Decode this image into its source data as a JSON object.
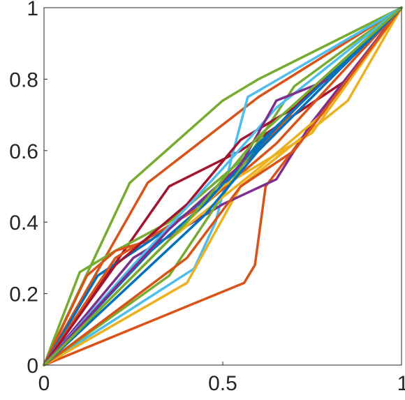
{
  "chart_data": {
    "type": "line",
    "title": "",
    "xlabel": "",
    "ylabel": "",
    "xlim": [
      0,
      1
    ],
    "ylim": [
      0,
      1
    ],
    "grid": false,
    "legend": "none",
    "x_ticks": [
      0,
      0.5,
      1
    ],
    "x_tick_labels": [
      "0",
      "0.5",
      "1"
    ],
    "y_ticks": [
      0,
      0.2,
      0.4,
      0.6,
      0.8,
      1
    ],
    "y_tick_labels": [
      "0",
      "0.2",
      "0.4",
      "0.6",
      "0.8",
      "1"
    ],
    "colors": [
      "#0072BD",
      "#D95319",
      "#EDB120",
      "#7E2F8E",
      "#77AC30",
      "#4DBEEE",
      "#A2142F"
    ],
    "series": [
      {
        "color": "#D95319",
        "x": [
          0,
          0.56,
          0.59,
          0.62,
          1
        ],
        "y": [
          0,
          0.23,
          0.28,
          0.5,
          1
        ]
      },
      {
        "color": "#77AC30",
        "x": [
          0,
          0.24,
          0.5,
          0.6,
          1
        ],
        "y": [
          0,
          0.51,
          0.74,
          0.8,
          1
        ]
      },
      {
        "color": "#D95319",
        "x": [
          0,
          0.29,
          0.6,
          1
        ],
        "y": [
          0,
          0.51,
          0.75,
          1
        ]
      },
      {
        "color": "#A2142F",
        "x": [
          0,
          0.35,
          0.55,
          0.85,
          1
        ],
        "y": [
          0,
          0.5,
          0.6,
          0.8,
          1
        ]
      },
      {
        "color": "#77AC30",
        "x": [
          0,
          0.1,
          0.2,
          0.35,
          0.7,
          1
        ],
        "y": [
          0,
          0.26,
          0.32,
          0.4,
          0.7,
          1
        ]
      },
      {
        "color": "#D95319",
        "x": [
          0,
          0.12,
          0.2,
          0.3,
          0.5,
          0.8,
          1
        ],
        "y": [
          0,
          0.25,
          0.32,
          0.35,
          0.5,
          0.82,
          1
        ]
      },
      {
        "color": "#4DBEEE",
        "x": [
          0,
          0.42,
          0.48,
          0.53,
          0.57,
          1
        ],
        "y": [
          0,
          0.27,
          0.4,
          0.6,
          0.75,
          1
        ]
      },
      {
        "color": "#EDB120",
        "x": [
          0,
          0.4,
          0.55,
          0.85,
          1
        ],
        "y": [
          0,
          0.23,
          0.5,
          0.74,
          1
        ]
      },
      {
        "color": "#7E2F8E",
        "x": [
          0,
          0.25,
          0.5,
          0.65,
          0.75,
          1
        ],
        "y": [
          0,
          0.3,
          0.45,
          0.52,
          0.68,
          1
        ]
      },
      {
        "color": "#0072BD",
        "x": [
          0,
          0.15,
          0.3,
          0.5,
          0.7,
          1
        ],
        "y": [
          0,
          0.25,
          0.35,
          0.5,
          0.72,
          1
        ]
      },
      {
        "color": "#D95319",
        "x": [
          0,
          0.2,
          0.45,
          0.65,
          1
        ],
        "y": [
          0,
          0.3,
          0.45,
          0.62,
          1
        ]
      },
      {
        "color": "#EDB120",
        "x": [
          0,
          0.3,
          0.5,
          0.75,
          1
        ],
        "y": [
          0,
          0.3,
          0.5,
          0.65,
          1
        ]
      },
      {
        "color": "#77AC30",
        "x": [
          0,
          0.35,
          0.55,
          0.7,
          1
        ],
        "y": [
          0,
          0.25,
          0.55,
          0.78,
          1
        ]
      },
      {
        "color": "#A2142F",
        "x": [
          0,
          0.2,
          0.4,
          0.55,
          0.7,
          1
        ],
        "y": [
          0,
          0.28,
          0.45,
          0.63,
          0.72,
          1
        ]
      },
      {
        "color": "#4DBEEE",
        "x": [
          0,
          0.25,
          0.5,
          0.65,
          1
        ],
        "y": [
          0,
          0.28,
          0.55,
          0.72,
          1
        ]
      },
      {
        "color": "#0072BD",
        "x": [
          0,
          0.3,
          0.45,
          0.6,
          1
        ],
        "y": [
          0,
          0.32,
          0.45,
          0.62,
          1
        ]
      },
      {
        "color": "#7E2F8E",
        "x": [
          0,
          0.35,
          0.55,
          0.65,
          0.8,
          1
        ],
        "y": [
          0,
          0.38,
          0.56,
          0.74,
          0.8,
          1
        ]
      },
      {
        "color": "#EDB120",
        "x": [
          0,
          0.15,
          0.35,
          0.6,
          0.8,
          1
        ],
        "y": [
          0,
          0.15,
          0.35,
          0.55,
          0.72,
          1
        ]
      },
      {
        "color": "#D95319",
        "x": [
          0,
          0.4,
          0.55,
          0.7,
          1
        ],
        "y": [
          0,
          0.3,
          0.5,
          0.6,
          1
        ]
      },
      {
        "color": "#0072BD",
        "x": [
          0,
          0.45,
          0.6,
          1
        ],
        "y": [
          0,
          0.42,
          0.6,
          1
        ]
      },
      {
        "color": "#77AC30",
        "x": [
          0,
          0.2,
          0.4,
          0.6,
          1
        ],
        "y": [
          0,
          0.2,
          0.4,
          0.64,
          1
        ]
      }
    ]
  }
}
